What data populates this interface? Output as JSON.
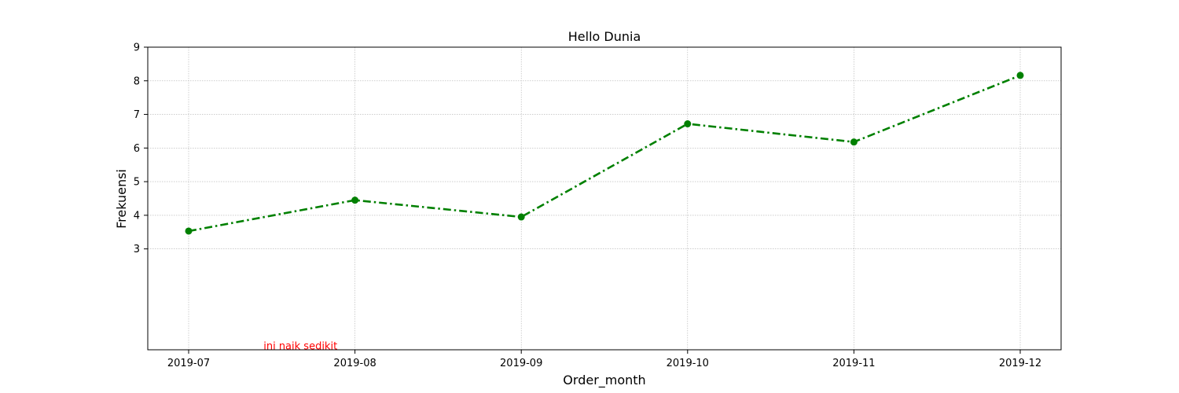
{
  "chart_data": {
    "type": "line",
    "title": "Hello Dunia",
    "xlabel": "Order_month",
    "ylabel": "Frekuensi",
    "x": [
      "2019-07",
      "2019-08",
      "2019-09",
      "2019-10",
      "2019-11",
      "2019-12"
    ],
    "series": [
      {
        "values": [
          3.53,
          4.45,
          3.95,
          6.72,
          6.18,
          8.16
        ],
        "color": "#008000",
        "line_style": "dash-dot",
        "marker": "circle"
      }
    ],
    "ylim": [
      0,
      9
    ],
    "yticks": [
      3,
      4,
      5,
      6,
      7,
      8,
      9
    ],
    "grid": true,
    "annotations": [
      {
        "text": "ini naik sedikit",
        "x": 0.45,
        "y": 0.1,
        "color": "#ff0000"
      }
    ]
  }
}
